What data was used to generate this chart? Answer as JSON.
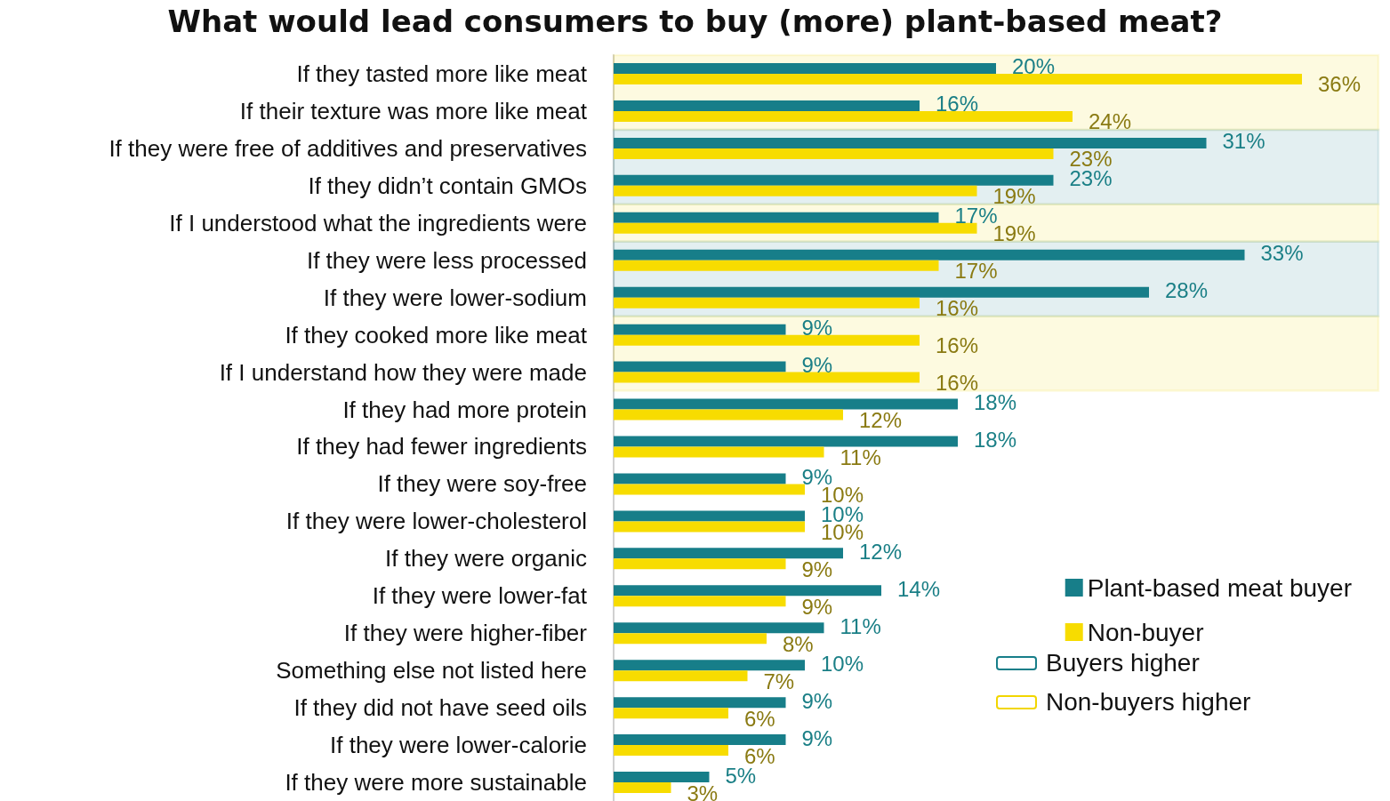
{
  "chart_data": {
    "type": "bar",
    "orientation": "horizontal",
    "title": "What would lead consumers to buy (more) plant-based meat?",
    "categories": [
      "If they tasted more like meat",
      "If their texture was more like meat",
      "If they were free of additives and preservatives",
      "If they didn’t contain GMOs",
      "If I understood what the ingredients were",
      "If they were less processed",
      "If they were lower-sodium",
      "If they cooked more like meat",
      "If I understand how they were made",
      "If they had more protein",
      "If they had fewer ingredients",
      "If they were soy-free",
      "If they were lower-cholesterol",
      "If they were organic",
      "If they were lower-fat",
      "If they were higher-fiber",
      "Something else not listed here",
      "If they did not have seed oils",
      "If they were lower-calorie",
      "If they were more sustainable"
    ],
    "series": [
      {
        "name": "Plant-based meat buyer",
        "color": "#177e89",
        "values": [
          20,
          16,
          31,
          23,
          17,
          33,
          28,
          9,
          9,
          18,
          18,
          9,
          10,
          12,
          14,
          11,
          10,
          9,
          9,
          5
        ],
        "value_labels": [
          "20%",
          "16%",
          "31%",
          "23%",
          "17%",
          "33%",
          "28%",
          "9%",
          "9%",
          "18%",
          "18%",
          "9%",
          "10%",
          "12%",
          "14%",
          "11%",
          "10%",
          "9%",
          "9%",
          "5%"
        ]
      },
      {
        "name": "Non-buyer",
        "color": "#f7dc00",
        "values": [
          36,
          24,
          23,
          19,
          19,
          17,
          16,
          16,
          16,
          12,
          11,
          10,
          10,
          9,
          9,
          8,
          7,
          6,
          6,
          3
        ],
        "value_labels": [
          "36%",
          "24%",
          "23%",
          "19%",
          "19%",
          "17%",
          "16%",
          "16%",
          "16%",
          "12%",
          "11%",
          "10%",
          "10%",
          "9%",
          "9%",
          "8%",
          "7%",
          "6%",
          "6%",
          "3%"
        ]
      }
    ],
    "tick_labels": "y",
    "grid": false,
    "legend": "bottom right",
    "bands": [
      {
        "axis": "y",
        "from": "If they tasted more like meat",
        "to": "If their texture was more like meat",
        "label": "Non-buyers higher",
        "color": "#f2d600"
      },
      {
        "axis": "y",
        "from": "If they were free of additives and preservatives",
        "to": "If they didn’t contain GMOs",
        "label": "Buyers higher",
        "color": "#177e89"
      },
      {
        "axis": "y",
        "from": "If I understood what the ingredients were",
        "to": "If I understood what the ingredients were",
        "color": "#f2d600"
      },
      {
        "axis": "y",
        "from": "If they were less processed",
        "to": "If they were lower-sodium",
        "color": "#177e89"
      },
      {
        "axis": "y",
        "from": "If they cooked more like meat",
        "to": "If I understand how they were made",
        "color": "#f2d600"
      }
    ]
  }
}
